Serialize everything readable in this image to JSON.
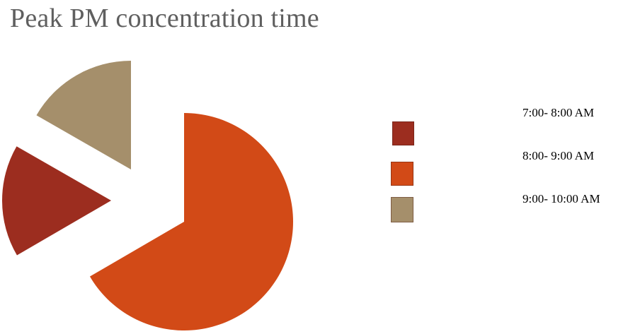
{
  "chart_data": {
    "type": "pie",
    "title": "Peak PM concentration time",
    "exploded": true,
    "slices": [
      {
        "label": "7:00- 8:00 AM",
        "value": 16.7,
        "color": "#9c2d1f"
      },
      {
        "label": "8:00- 9:00 AM",
        "value": 66.6,
        "color": "#d24a17"
      },
      {
        "label": "9:00- 10:00 AM",
        "value": 16.7,
        "color": "#a58f6b"
      }
    ],
    "legend_position": "right"
  }
}
